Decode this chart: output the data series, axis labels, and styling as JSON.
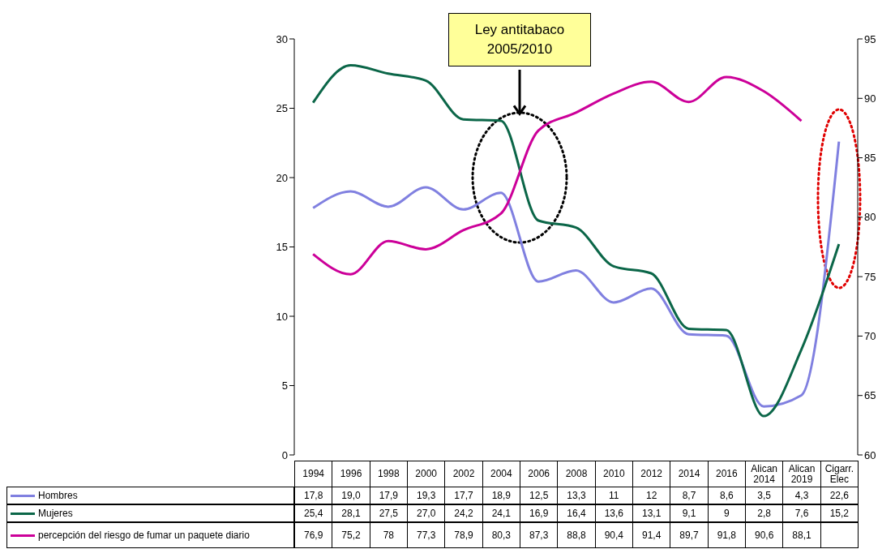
{
  "chart_data": {
    "type": "line",
    "categories": [
      "1994",
      "1996",
      "1998",
      "2000",
      "2002",
      "2004",
      "2006",
      "2008",
      "2010",
      "2012",
      "2014",
      "2016",
      "Alican 2014",
      "Alican 2019",
      "Cigarr. Elec"
    ],
    "series": [
      {
        "name": "Hombres",
        "color": "#8080e0",
        "values": [
          17.8,
          19.0,
          17.9,
          19.3,
          17.7,
          18.9,
          12.5,
          13.3,
          11,
          12,
          8.7,
          8.6,
          3.5,
          4.3,
          22.6
        ],
        "value_labels": [
          "17,8",
          "19,0",
          "17,9",
          "19,3",
          "17,7",
          "18,9",
          "12,5",
          "13,3",
          "11",
          "12",
          "8,7",
          "8,6",
          "3,5",
          "4,3",
          "22,6"
        ]
      },
      {
        "name": "Mujeres",
        "color": "#0b6648",
        "values": [
          25.4,
          28.1,
          27.5,
          27.0,
          24.2,
          24.1,
          16.9,
          16.4,
          13.6,
          13.1,
          9.1,
          9,
          2.8,
          7.6,
          15.2
        ],
        "value_labels": [
          "25,4",
          "28,1",
          "27,5",
          "27,0",
          "24,2",
          "24,1",
          "16,9",
          "16,4",
          "13,6",
          "13,1",
          "9,1",
          "9",
          "2,8",
          "7,6",
          "15,2"
        ]
      },
      {
        "name": "percepción del riesgo de fumar un paquete diario",
        "color": "#cc0099",
        "axis": "y2",
        "values": [
          76.9,
          75.2,
          78,
          77.3,
          78.9,
          80.3,
          87.3,
          88.8,
          90.4,
          91.4,
          89.7,
          91.8,
          90.6,
          88.1,
          null
        ],
        "value_labels": [
          "76,9",
          "75,2",
          "78",
          "77,3",
          "78,9",
          "80,3",
          "87,3",
          "88,8",
          "90,4",
          "91,4",
          "89,7",
          "91,8",
          "90,6",
          "88,1",
          null
        ]
      }
    ],
    "ylim": [
      0,
      30
    ],
    "yticks": [
      0,
      5,
      10,
      15,
      20,
      25,
      30
    ],
    "y2lim": [
      60,
      95
    ],
    "y2ticks": [
      60,
      65,
      70,
      75,
      80,
      85,
      90,
      95
    ],
    "annotations": [
      "Ley antitabaco 2005/2010"
    ],
    "legend": "bottom left",
    "marker": "none",
    "line_style": "solid"
  }
}
